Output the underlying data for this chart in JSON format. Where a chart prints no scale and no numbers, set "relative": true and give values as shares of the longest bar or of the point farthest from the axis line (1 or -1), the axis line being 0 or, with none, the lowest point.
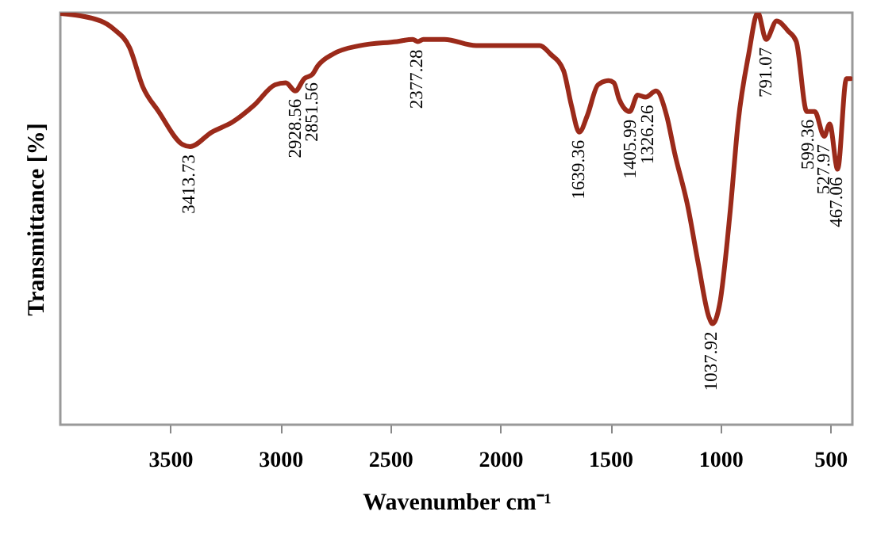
{
  "chart_data": {
    "type": "line",
    "xlabel": "Wavenumber cm⁻¹",
    "ylabel": "Transmittance  [%]",
    "relative": true,
    "xlim": [
      4000,
      400
    ],
    "xticks": [
      3500,
      3000,
      2500,
      2000,
      1500,
      1000,
      500
    ],
    "grid": false,
    "marker": "none",
    "line_style": "solid",
    "series": [
      {
        "color": "#9b2a1a",
        "x": [
          4000,
          3817,
          3757,
          3685,
          3625,
          3553,
          3444,
          3410,
          3312,
          3216,
          3120,
          3024,
          2975,
          2932,
          2891,
          2855,
          2831,
          2759,
          2639,
          2470,
          2398,
          2375,
          2350,
          2254,
          2110,
          2014,
          1821,
          1773,
          1713,
          1677,
          1641,
          1605,
          1556,
          1508,
          1484,
          1460,
          1412,
          1376,
          1340,
          1292,
          1244,
          1208,
          1148,
          1100,
          1051,
          1035,
          1004,
          955,
          919,
          871,
          830,
          792,
          744,
          691,
          655,
          607,
          571,
          528,
          503,
          467,
          427,
          408
        ],
        "values": [
          0.998,
          0.98,
          0.96,
          0.915,
          0.82,
          0.76,
          0.68,
          0.675,
          0.71,
          0.735,
          0.775,
          0.825,
          0.83,
          0.81,
          0.84,
          0.85,
          0.87,
          0.9,
          0.92,
          0.93,
          0.935,
          0.93,
          0.935,
          0.935,
          0.92,
          0.92,
          0.92,
          0.9,
          0.86,
          0.775,
          0.71,
          0.75,
          0.825,
          0.835,
          0.83,
          0.79,
          0.76,
          0.8,
          0.795,
          0.81,
          0.75,
          0.66,
          0.53,
          0.39,
          0.26,
          0.245,
          0.29,
          0.52,
          0.735,
          0.9,
          1.0,
          0.935,
          0.98,
          0.955,
          0.93,
          0.76,
          0.76,
          0.7,
          0.73,
          0.62,
          0.84,
          0.84
        ]
      }
    ],
    "annotations": [
      {
        "text": "3413.73",
        "x": 3413.73,
        "y": 0.675
      },
      {
        "text": "2928.56",
        "x": 2928.56,
        "y": 0.81
      },
      {
        "text": "2851.56",
        "x": 2851.56,
        "y": 0.85
      },
      {
        "text": "2377.28",
        "x": 2377.28,
        "y": 0.93
      },
      {
        "text": "1639.36",
        "x": 1639.36,
        "y": 0.71
      },
      {
        "text": "1405.99",
        "x": 1405.99,
        "y": 0.76
      },
      {
        "text": "1326.26",
        "x": 1326.26,
        "y": 0.795
      },
      {
        "text": "1037.92",
        "x": 1037.92,
        "y": 0.245
      },
      {
        "text": "791.07",
        "x": 791.07,
        "y": 0.935
      },
      {
        "text": "599.36",
        "x": 599.36,
        "y": 0.76
      },
      {
        "text": "527.97",
        "x": 527.97,
        "y": 0.7
      },
      {
        "text": "467.06",
        "x": 467.06,
        "y": 0.62
      }
    ]
  }
}
